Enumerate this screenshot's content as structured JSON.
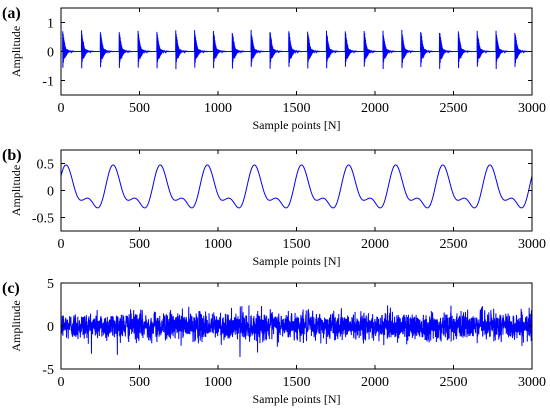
{
  "chart_data": [
    {
      "id": "a",
      "type": "line",
      "panel_label": "(a)",
      "xlabel": "Sample points [N]",
      "ylabel": "Amplitude",
      "xlim": [
        0,
        3000
      ],
      "ylim": [
        -1.5,
        1.5
      ],
      "xticks": [
        0,
        500,
        1000,
        1500,
        2000,
        2500,
        3000
      ],
      "yticks": [
        -1,
        0,
        1
      ],
      "grid": false,
      "signal": {
        "kind": "periodic decaying impulses",
        "impulse_period_samples": 120,
        "first_impulse_at": 10,
        "impulse_peak_amplitude": 0.9,
        "impulse_trough_amplitude": -0.9,
        "decay_length_samples": 60,
        "color": "#0000ff"
      }
    },
    {
      "id": "b",
      "type": "line",
      "panel_label": "(b)",
      "xlabel": "Sample points [N]",
      "ylabel": "Amplitude",
      "xlim": [
        0,
        3000
      ],
      "ylim": [
        -0.75,
        0.75
      ],
      "xticks": [
        0,
        500,
        1000,
        1500,
        2000,
        2500,
        3000
      ],
      "yticks": [
        -0.5,
        0,
        0.5
      ],
      "grid": false,
      "signal": {
        "kind": "two-harmonic periodic",
        "period_samples": 300,
        "max_amplitude": 0.45,
        "min_amplitude": -0.45,
        "first_peak_at": 40,
        "color": "#0000ff"
      }
    },
    {
      "id": "c",
      "type": "line",
      "panel_label": "(c)",
      "xlabel": "Sample points [N]",
      "ylabel": "Amplitude",
      "xlim": [
        0,
        3000
      ],
      "ylim": [
        -5,
        5
      ],
      "xticks": [
        0,
        500,
        1000,
        1500,
        2000,
        2500,
        3000
      ],
      "yticks": [
        -5,
        0,
        5
      ],
      "grid": false,
      "signal": {
        "kind": "random noise",
        "std": 0.8,
        "peak_range": [
          -3.6,
          2.4
        ],
        "color": "#0000ff"
      }
    }
  ]
}
